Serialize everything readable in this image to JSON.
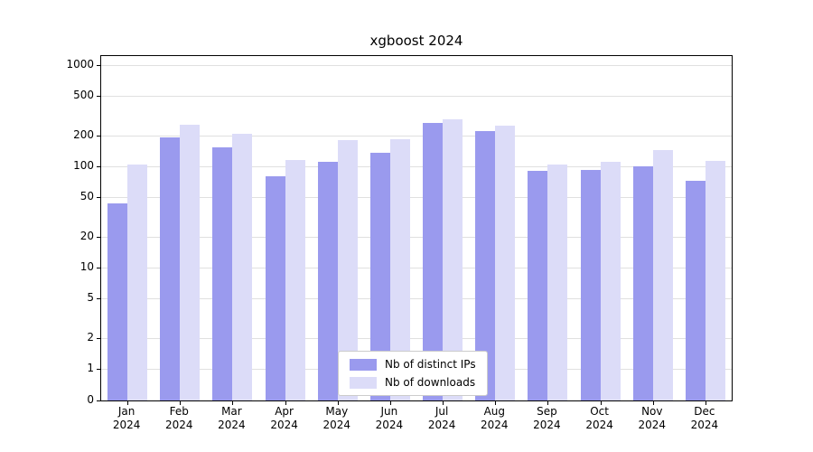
{
  "chart_data": {
    "type": "bar",
    "title": "xgboost 2024",
    "categories": [
      "Jan",
      "Feb",
      "Mar",
      "Apr",
      "May",
      "Jun",
      "Jul",
      "Aug",
      "Sep",
      "Oct",
      "Nov",
      "Dec"
    ],
    "year_label": "2024",
    "series": [
      {
        "name": "Nb of distinct IPs",
        "color": "#9a9aee",
        "values": [
          43,
          195,
          155,
          80,
          110,
          135,
          270,
          225,
          90,
          92,
          100,
          72
        ]
      },
      {
        "name": "Nb of downloads",
        "color": "#dcdcf8",
        "values": [
          105,
          260,
          210,
          115,
          180,
          185,
          290,
          250,
          105,
          112,
          145,
          113
        ]
      }
    ],
    "yticks": [
      0,
      1,
      2,
      5,
      10,
      20,
      50,
      100,
      200,
      500,
      1000
    ],
    "ylim": [
      0,
      1200
    ],
    "yscale": "symlog",
    "xlabel": "",
    "ylabel": "",
    "grid": true,
    "legend_position": "lower center"
  },
  "colors": {
    "background": "#ffffff",
    "grid": "#e0e0e0",
    "axis": "#000000",
    "legend_border": "#cccccc"
  }
}
